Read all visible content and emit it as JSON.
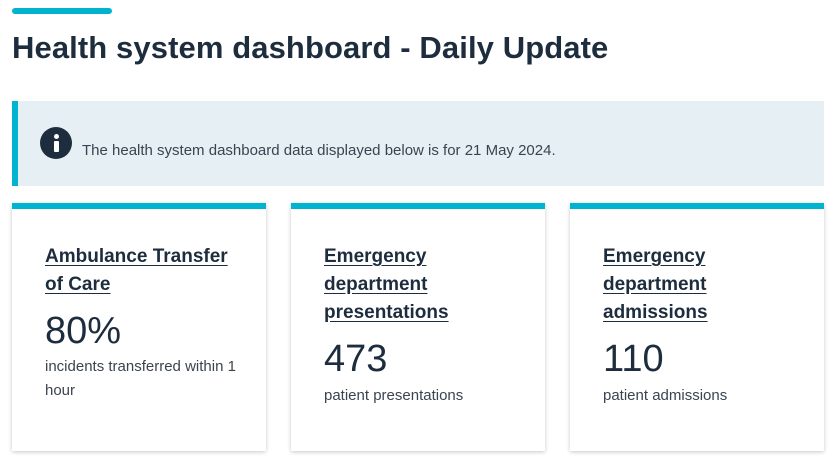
{
  "header": {
    "title": "Health system dashboard - Daily Update",
    "accent_color": "#00b3cf"
  },
  "info": {
    "icon": "info-icon",
    "text": "The health system dashboard data displayed below is for 21 May 2024."
  },
  "cards": [
    {
      "title": "Ambulance Transfer of Care",
      "value": "80%",
      "caption": "incidents transferred within 1 hour"
    },
    {
      "title": "Emergency department presentations",
      "value": "473",
      "caption": "patient presentations"
    },
    {
      "title": "Emergency department admissions",
      "value": "110",
      "caption": "patient admissions"
    }
  ]
}
